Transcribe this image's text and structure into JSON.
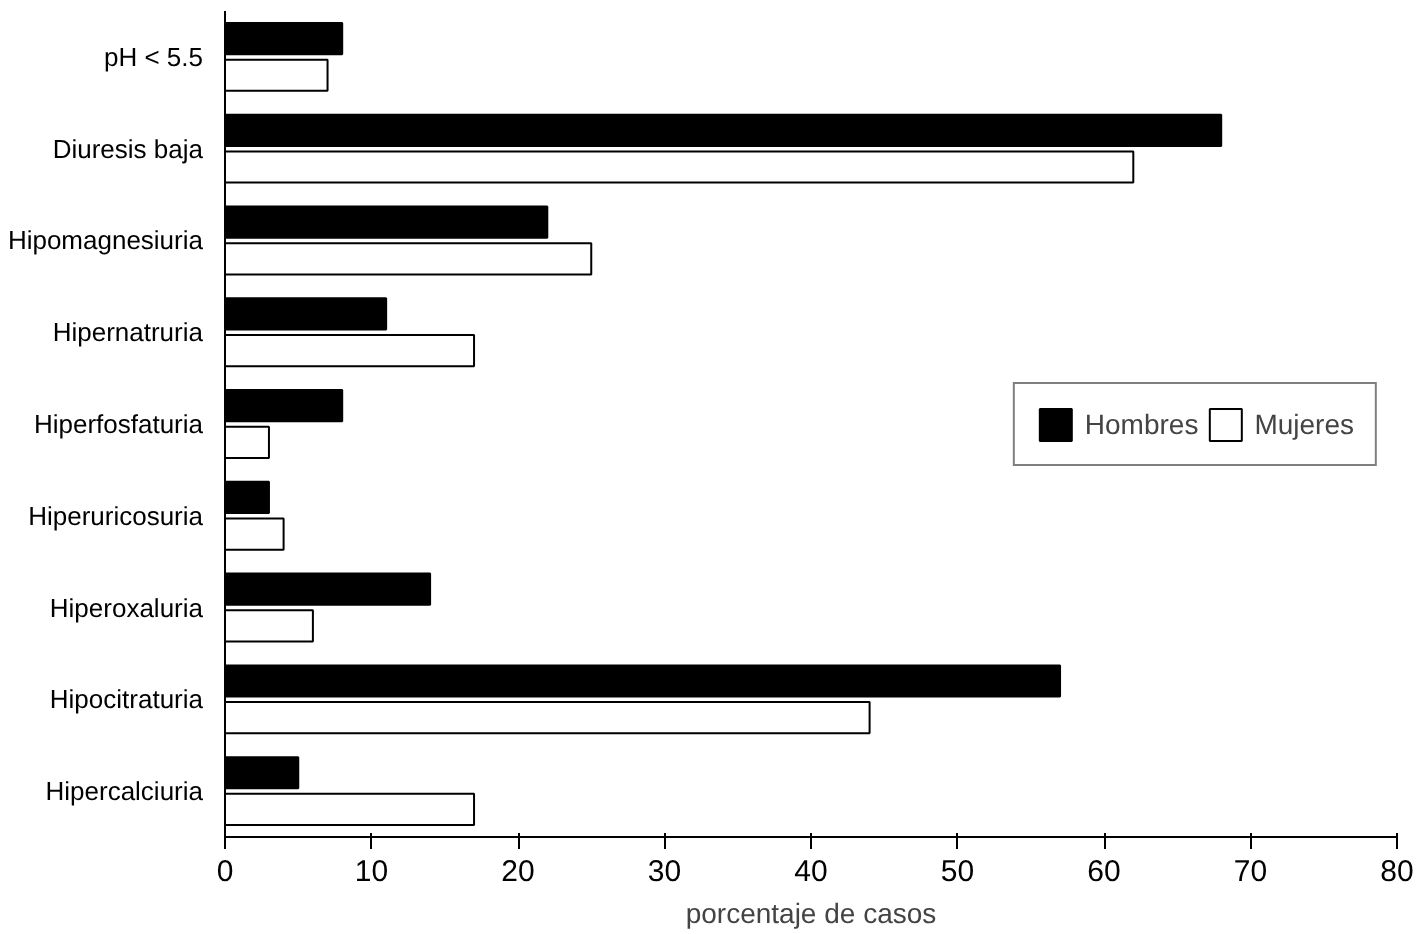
{
  "chart_data": {
    "type": "bar",
    "orientation": "horizontal",
    "xlabel": "porcentaje de casos",
    "categories": [
      "pH < 5.5",
      "Diuresis baja",
      "Hipomagnesiuria",
      "Hipernatruria",
      "Hiperfosfaturia",
      "Hiperuricosuria",
      "Hiperoxaluria",
      "Hipocitraturia",
      "Hipercalciuria"
    ],
    "series": [
      {
        "name": "Hombres",
        "color": "#000000",
        "values": [
          8,
          68,
          22,
          11,
          8,
          3,
          14,
          57,
          5
        ]
      },
      {
        "name": "Mujeres",
        "color": "#ffffff",
        "values": [
          7,
          62,
          25,
          17,
          3,
          4,
          6,
          44,
          17
        ]
      }
    ],
    "xlim": [
      0,
      80
    ],
    "xticks": [
      0,
      10,
      20,
      30,
      40,
      50,
      60,
      70,
      80
    ],
    "grid": false,
    "legend": "right"
  }
}
